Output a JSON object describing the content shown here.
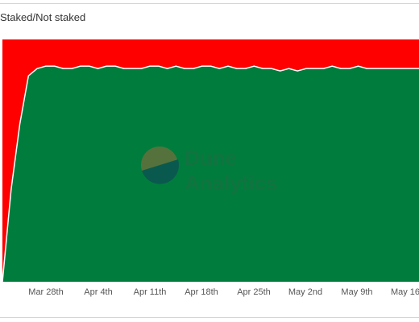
{
  "chart_data": {
    "type": "area",
    "title": "Staked/Not staked",
    "xlabel": "",
    "ylabel": "",
    "stacked": true,
    "normalized": true,
    "ylim": [
      0,
      1
    ],
    "x_tick_labels": [
      "Mar 28th",
      "Apr 4th",
      "Apr 11th",
      "Apr 18th",
      "Apr 25th",
      "May 2nd",
      "May 9th",
      "May 16"
    ],
    "series": [
      {
        "color": "#007d3c",
        "values": [
          0.0,
          0.38,
          0.65,
          0.85,
          0.88,
          0.89,
          0.89,
          0.88,
          0.88,
          0.89,
          0.89,
          0.88,
          0.89,
          0.89,
          0.88,
          0.88,
          0.88,
          0.89,
          0.89,
          0.88,
          0.89,
          0.88,
          0.88,
          0.89,
          0.89,
          0.88,
          0.89,
          0.88,
          0.88,
          0.89,
          0.88,
          0.88,
          0.87,
          0.88,
          0.87,
          0.88,
          0.88,
          0.88,
          0.89,
          0.88,
          0.88,
          0.89,
          0.88,
          0.88,
          0.88,
          0.88,
          0.88,
          0.88,
          0.88
        ]
      },
      {
        "color": "#ff0000",
        "values": [
          1.0,
          0.62,
          0.35,
          0.15,
          0.12,
          0.11,
          0.11,
          0.12,
          0.12,
          0.11,
          0.11,
          0.12,
          0.11,
          0.11,
          0.12,
          0.12,
          0.12,
          0.11,
          0.11,
          0.12,
          0.11,
          0.12,
          0.12,
          0.11,
          0.11,
          0.12,
          0.11,
          0.12,
          0.12,
          0.11,
          0.12,
          0.12,
          0.13,
          0.12,
          0.13,
          0.12,
          0.12,
          0.12,
          0.11,
          0.12,
          0.12,
          0.11,
          0.12,
          0.12,
          0.12,
          0.12,
          0.12,
          0.12,
          0.12
        ]
      }
    ],
    "watermark": {
      "line1": "Dune",
      "line2": "Analytics"
    }
  }
}
